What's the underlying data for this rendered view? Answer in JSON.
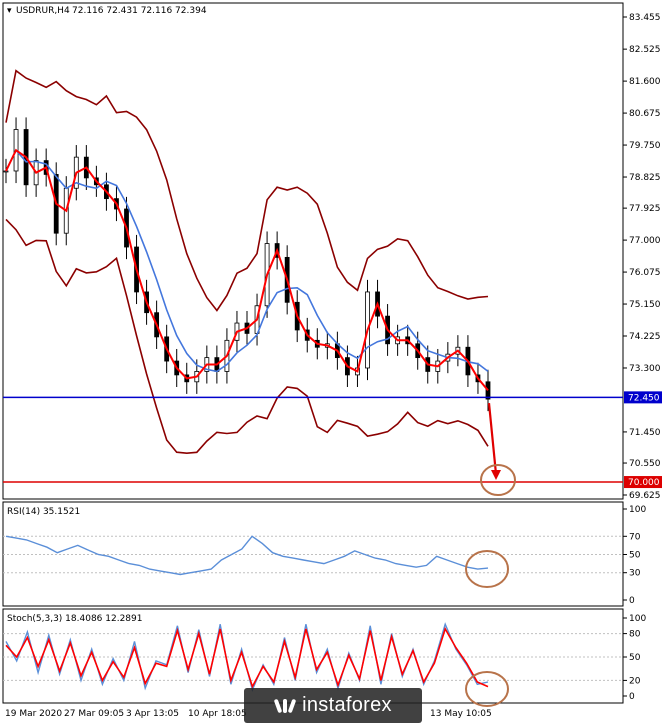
{
  "main": {
    "symbol": "USDRUR,H4",
    "ohlc": "72.116 72.431 72.116 72.394",
    "price_labels": [
      "83.455",
      "82.525",
      "81.600",
      "80.675",
      "79.750",
      "78.825",
      "77.925",
      "77.000",
      "76.075",
      "75.150",
      "74.225",
      "73.300",
      "71.450",
      "70.550",
      "69.625"
    ],
    "price_values": [
      83.455,
      82.525,
      81.6,
      80.675,
      79.75,
      78.825,
      77.925,
      77.0,
      76.075,
      75.15,
      74.225,
      73.3,
      71.45,
      70.55,
      69.625
    ],
    "ylim": [
      69.625,
      83.455
    ],
    "hline_blue": {
      "value": 72.45,
      "label": "72.450",
      "color": "#0000cc"
    },
    "hline_red": {
      "value": 70.0,
      "label": "70.000",
      "color": "#dd0000"
    }
  },
  "rsi": {
    "title": "RSI(14) 35.1521",
    "levels": [
      "100",
      "70",
      "50",
      "30",
      "0"
    ],
    "level_values": [
      100,
      70,
      50,
      30,
      0
    ]
  },
  "stoch": {
    "title": "Stoch(5,3,3) 18.4086 12.2891",
    "levels": [
      "100",
      "80",
      "50",
      "20",
      "0"
    ],
    "level_values": [
      100,
      80,
      50,
      20,
      0
    ]
  },
  "time_labels": [
    "19 Mar 2020",
    "27 Mar 09:05",
    "3 Apr 13:05",
    "10 Apr 18:05",
    "13 May 10:05"
  ],
  "watermark": "instaforex",
  "colors": {
    "bollinger": "#8b0000",
    "fast_ma": "#ff0000",
    "slow_ma": "#4477dd",
    "annotation": "#b8734a",
    "rsi_line": "#5b8fd8",
    "stoch_main": "#5b8fd8",
    "stoch_signal": "#ff0000"
  },
  "chart_data": [
    {
      "type": "line",
      "title": "USDRUR,H4",
      "ylim": [
        69.625,
        83.455
      ],
      "series": [
        {
          "name": "",
          "values": [
            79.0,
            80.2,
            78.6,
            79.3,
            78.9,
            77.2,
            78.5,
            79.4,
            78.8,
            78.6,
            78.2,
            77.9,
            76.8,
            75.5,
            74.9,
            74.2,
            73.5,
            73.1,
            72.9,
            73.2,
            73.6,
            73.2,
            74.1,
            74.6,
            74.3,
            75.1,
            76.9,
            76.5,
            75.2,
            74.4,
            74.1,
            73.9,
            74.0,
            73.6,
            73.1,
            73.3,
            75.5,
            74.8,
            74.0,
            74.2,
            74.0,
            73.6,
            73.2,
            73.5,
            73.7,
            73.9,
            73.1,
            72.9,
            72.4
          ]
        }
      ]
    },
    {
      "type": "line",
      "title": "RSI(14) 35.1521",
      "ylim": [
        0,
        100
      ],
      "series": [
        {
          "name": "",
          "values": [
            70,
            68,
            66,
            62,
            58,
            52,
            56,
            60,
            55,
            50,
            48,
            44,
            40,
            38,
            34,
            32,
            30,
            28,
            30,
            32,
            34,
            44,
            50,
            56,
            70,
            62,
            52,
            48,
            46,
            44,
            42,
            40,
            44,
            48,
            54,
            50,
            46,
            44,
            40,
            38,
            36,
            38,
            48,
            44,
            40,
            36,
            34,
            35
          ]
        }
      ]
    },
    {
      "type": "line",
      "title": "Stoch(5,3,3) 18.4086 12.2891",
      "ylim": [
        0,
        100
      ],
      "series": [
        {
          "name": "",
          "values": [
            70,
            45,
            82,
            30,
            78,
            28,
            72,
            20,
            60,
            15,
            48,
            20,
            70,
            10,
            45,
            40,
            90,
            30,
            85,
            25,
            92,
            15,
            60,
            8,
            40,
            15,
            75,
            20,
            92,
            30,
            60,
            10,
            55,
            20,
            90,
            15,
            80,
            25,
            60,
            15,
            45,
            92,
            60,
            40,
            15,
            18
          ]
        },
        {
          "name": "",
          "values": [
            65,
            50,
            75,
            38,
            72,
            32,
            68,
            26,
            56,
            20,
            44,
            24,
            62,
            16,
            42,
            38,
            84,
            34,
            80,
            28,
            86,
            20,
            56,
            12,
            38,
            18,
            70,
            24,
            86,
            34,
            56,
            14,
            52,
            22,
            84,
            20,
            76,
            28,
            58,
            18,
            42,
            86,
            62,
            42,
            18,
            12
          ]
        }
      ]
    }
  ]
}
